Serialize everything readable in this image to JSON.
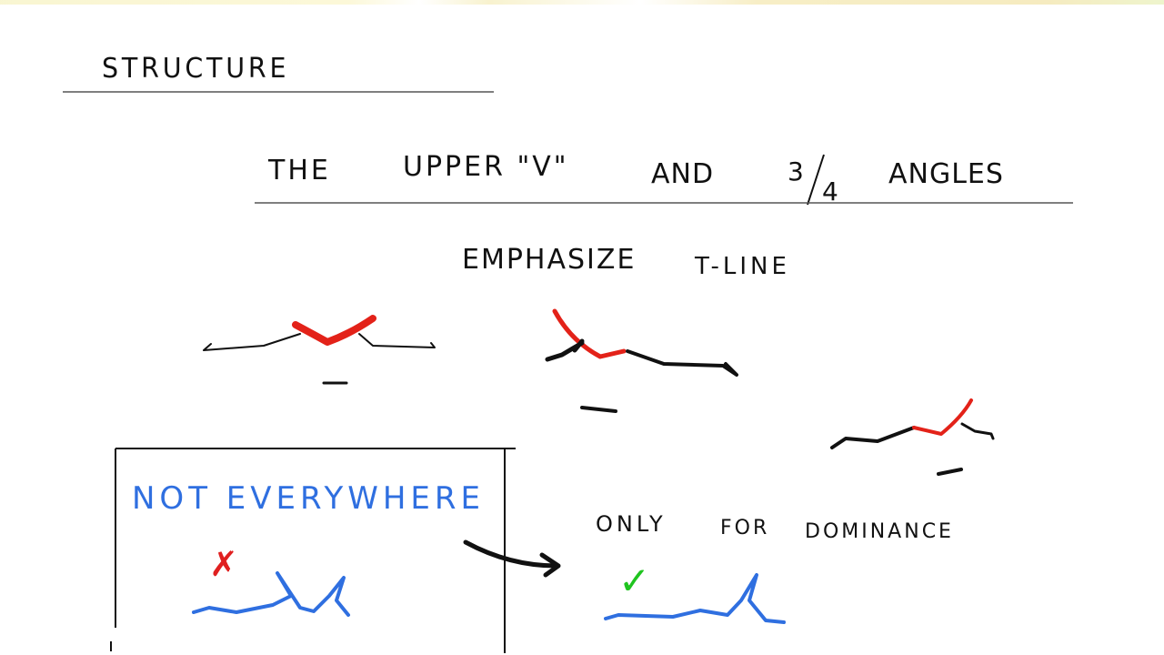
{
  "title": "STRUCTURE",
  "subtitle": {
    "word1": "THE",
    "word2": "UPPER \"V\"",
    "word3": "AND",
    "fraction_num": "3",
    "fraction_den": "4",
    "word4": "ANGLES"
  },
  "emphasis": {
    "line1": "EMPHASIZE",
    "line2": "T-LINE"
  },
  "box": {
    "heading": "NOT EVERYWHERE",
    "wrong_mark": "✗"
  },
  "dominance": {
    "word1": "ONLY",
    "word2": "FOR",
    "word3": "DOMINANCE",
    "right_mark": "✓"
  },
  "colors": {
    "ink": "#111111",
    "accent_red": "#e32219",
    "accent_blue": "#2f6fe0",
    "accent_green": "#1fc41f"
  }
}
